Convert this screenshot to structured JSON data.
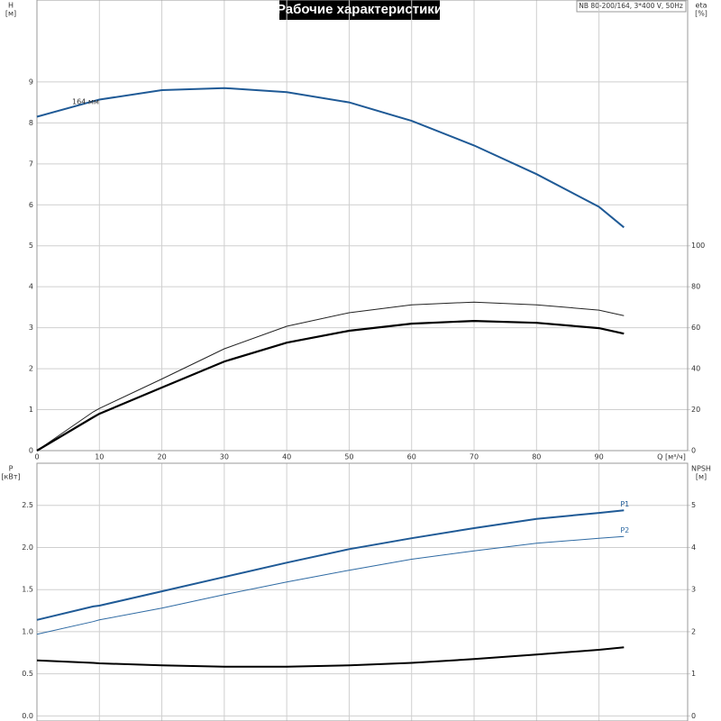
{
  "chart_data": [
    {
      "type": "line",
      "title": "Рабочие характеристики",
      "subtitle": "NB 80-200/164, 3*400 V, 50Hz",
      "annotation": "164 мм",
      "xlabel": "Q [м³/ч]",
      "ylabel": "H",
      "yunit": "[м]",
      "y2label": "eta",
      "y2unit": "[%]",
      "x": [
        0,
        9,
        10,
        20,
        30,
        40,
        50,
        60,
        70,
        80,
        90,
        94
      ],
      "xlim": [
        0,
        104.2
      ],
      "xticks": [
        0,
        10,
        20,
        30,
        40,
        50,
        60,
        70,
        80,
        90
      ],
      "ylim": [
        0,
        11
      ],
      "yticks": [
        0,
        1,
        2,
        3,
        4,
        5,
        6,
        7,
        8,
        9
      ],
      "y2lim": [
        0,
        220
      ],
      "y2ticks": [
        0,
        20,
        40,
        60,
        80,
        100
      ],
      "grid": true,
      "series": [
        {
          "color": "#1f5a96",
          "values": [
            8.15,
            8.53,
            8.57,
            8.8,
            8.85,
            8.75,
            8.5,
            8.05,
            7.45,
            6.75,
            5.95,
            5.45
          ]
        },
        {
          "color": "#222222",
          "axis": "y2",
          "values": [
            0,
            18.9,
            20.6,
            35,
            49.7,
            60.7,
            67.3,
            71.2,
            72.5,
            71.2,
            68.6,
            65.9
          ]
        },
        {
          "color": "#000000",
          "axis": "y2",
          "values": [
            0,
            16.3,
            18,
            30.8,
            43.5,
            52.7,
            58.5,
            62,
            63.3,
            62.4,
            59.8,
            57.1
          ]
        }
      ]
    },
    {
      "type": "line",
      "ylabel": "P",
      "yunit": "[кВт]",
      "y2label": "NPSH",
      "y2unit": "[м]",
      "x": [
        0,
        9,
        10,
        20,
        30,
        40,
        50,
        60,
        70,
        80,
        90,
        94
      ],
      "ylim": [
        -0.06,
        3.0
      ],
      "yticks": [
        {
          "value": 0,
          "label": "0.0"
        },
        0.5,
        {
          "value": 1,
          "label": "1.0"
        },
        1.5,
        {
          "value": 2,
          "label": "2.0"
        },
        2.5
      ],
      "y2lim": [
        -0.12,
        6
      ],
      "y2ticks": [
        0,
        1,
        2,
        3,
        4,
        5
      ],
      "grid": true,
      "series": [
        {
          "name": "P1",
          "color": "#1f5a96",
          "values": [
            1.14,
            1.3,
            1.31,
            1.48,
            1.65,
            1.82,
            1.98,
            2.11,
            2.23,
            2.34,
            2.41,
            2.44
          ]
        },
        {
          "name": "P2",
          "color": "#2e6aa3",
          "values": [
            0.97,
            1.12,
            1.14,
            1.28,
            1.44,
            1.59,
            1.73,
            1.86,
            1.96,
            2.05,
            2.11,
            2.13
          ]
        },
        {
          "color": "#000000",
          "axis": "y2",
          "values": [
            1.32,
            1.26,
            1.25,
            1.2,
            1.17,
            1.17,
            1.2,
            1.26,
            1.35,
            1.46,
            1.57,
            1.63
          ]
        }
      ]
    }
  ]
}
